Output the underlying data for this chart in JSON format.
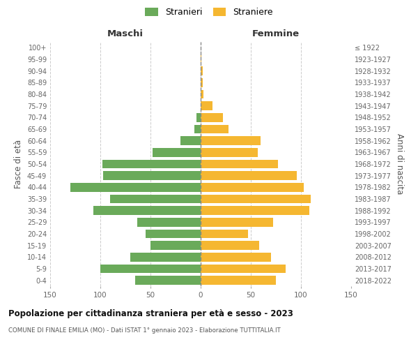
{
  "age_groups": [
    "0-4",
    "5-9",
    "10-14",
    "15-19",
    "20-24",
    "25-29",
    "30-34",
    "35-39",
    "40-44",
    "45-49",
    "50-54",
    "55-59",
    "60-64",
    "65-69",
    "70-74",
    "75-79",
    "80-84",
    "85-89",
    "90-94",
    "95-99",
    "100+"
  ],
  "birth_years": [
    "2018-2022",
    "2013-2017",
    "2008-2012",
    "2003-2007",
    "1998-2002",
    "1993-1997",
    "1988-1992",
    "1983-1987",
    "1978-1982",
    "1973-1977",
    "1968-1972",
    "1963-1967",
    "1958-1962",
    "1953-1957",
    "1948-1952",
    "1943-1947",
    "1938-1942",
    "1933-1937",
    "1928-1932",
    "1923-1927",
    "≤ 1922"
  ],
  "maschi": [
    65,
    100,
    70,
    50,
    55,
    63,
    107,
    90,
    130,
    97,
    98,
    48,
    20,
    6,
    4,
    0,
    0,
    0,
    0,
    0,
    0
  ],
  "femmine": [
    75,
    85,
    70,
    58,
    47,
    72,
    108,
    110,
    103,
    96,
    77,
    57,
    60,
    28,
    22,
    12,
    3,
    2,
    2,
    1,
    0
  ],
  "male_color": "#6aaa5a",
  "female_color": "#f5b731",
  "dashed_line_color": "#888888",
  "grid_color": "#cccccc",
  "title": "Popolazione per cittadinanza straniera per età e sesso - 2023",
  "subtitle": "COMUNE DI FINALE EMILIA (MO) - Dati ISTAT 1° gennaio 2023 - Elaborazione TUTTITALIA.IT",
  "xlabel_left": "Maschi",
  "xlabel_right": "Femmine",
  "ylabel_left": "Fasce di età",
  "ylabel_right": "Anni di nascita",
  "legend_male": "Stranieri",
  "legend_female": "Straniere",
  "xlim": 150,
  "bar_height": 0.75,
  "background_color": "#ffffff"
}
